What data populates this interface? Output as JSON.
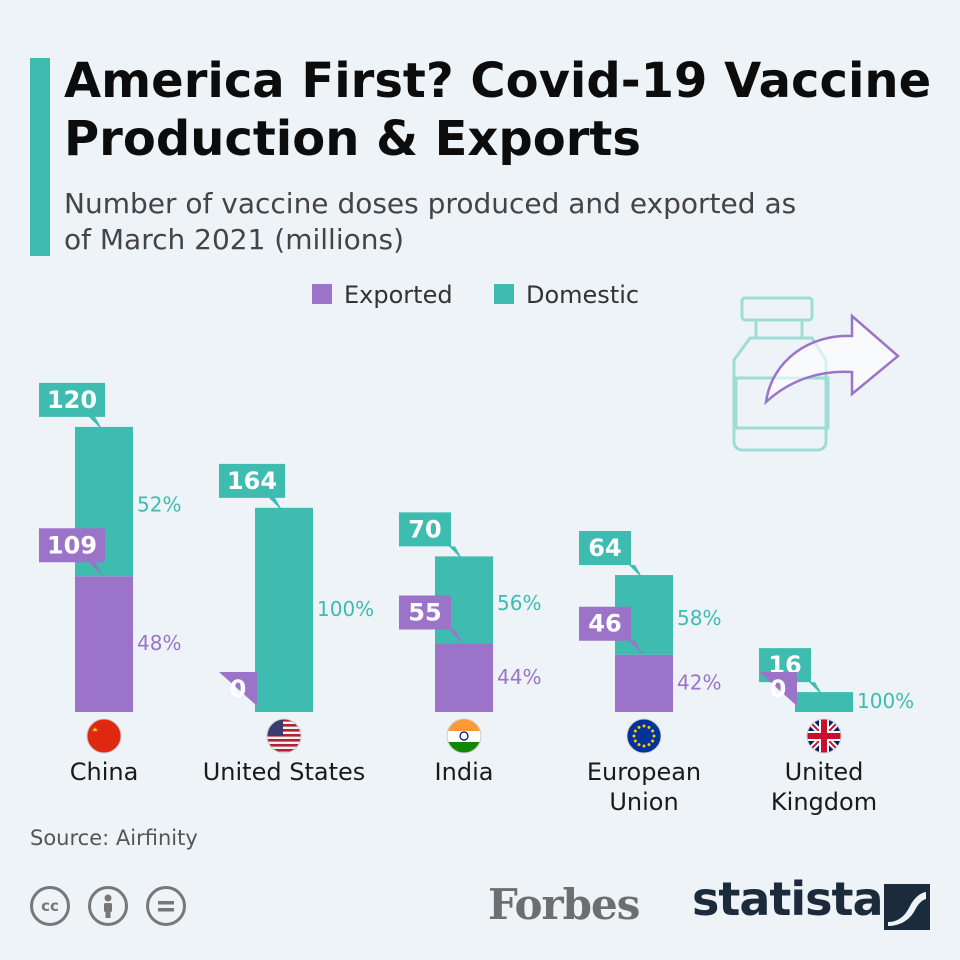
{
  "header": {
    "title": "America First? Covid-19 Vaccine Production & Exports",
    "subtitle": "Number of vaccine doses produced and exported as of March 2021 (millions)"
  },
  "footer": {
    "source": "Source: Airfinity",
    "license_icons": [
      "cc-icon",
      "attribution-icon",
      "no-derivatives-icon"
    ],
    "logos": [
      "Forbes",
      "statista"
    ]
  },
  "colors": {
    "exported": "#9b74c9",
    "domestic": "#3ebcb0",
    "accent": "#3ebcb0"
  },
  "chart_data": {
    "type": "bar",
    "stacked": true,
    "legend": [
      "Exported",
      "Domestic"
    ],
    "legend_position": "top",
    "categories": [
      "China",
      "United States",
      "India",
      "European Union",
      "United Kingdom"
    ],
    "series": [
      {
        "name": "Exported",
        "values": [
          109,
          0,
          55,
          46,
          0
        ],
        "percent": [
          "48%",
          "",
          "44%",
          "42%",
          ""
        ]
      },
      {
        "name": "Domestic",
        "values": [
          120,
          164,
          70,
          64,
          16
        ],
        "percent": [
          "52%",
          "100%",
          "56%",
          "58%",
          "100%"
        ]
      }
    ],
    "flags": [
      "china-flag-icon",
      "us-flag-icon",
      "india-flag-icon",
      "eu-flag-icon",
      "uk-flag-icon"
    ]
  }
}
